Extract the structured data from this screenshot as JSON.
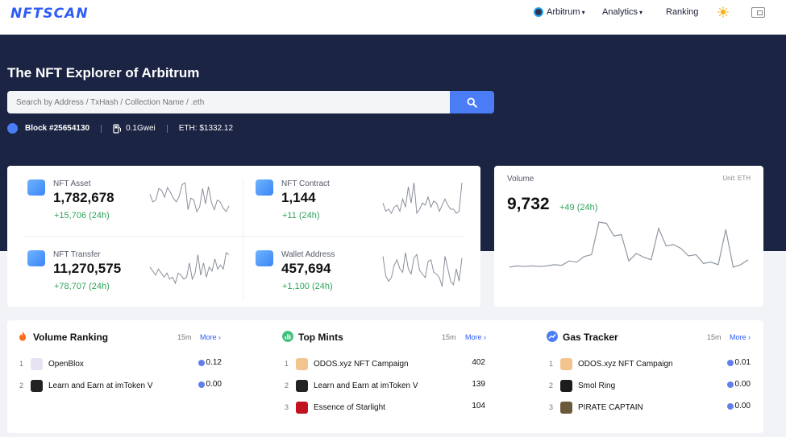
{
  "brand": {
    "logo": "NFTSCAN"
  },
  "nav": {
    "network": "Arbitrum",
    "analytics": "Analytics",
    "ranking": "Ranking"
  },
  "hero": {
    "title": "The NFT Explorer of Arbitrum",
    "search_placeholder": "Search by Address / TxHash / Collection Name / .eth",
    "block": "Block #25654130",
    "gas": "0.1Gwei",
    "eth_price": "ETH: $1332.12"
  },
  "metrics": [
    {
      "label": "NFT Asset",
      "value": "1,782,678",
      "delta": "+15,706 (24h)",
      "spark": [
        12,
        20,
        18,
        6,
        8,
        15,
        5,
        10,
        16,
        20,
        14,
        2,
        0,
        28,
        16,
        18,
        30,
        25,
        6,
        22,
        4,
        20,
        28,
        18,
        20,
        26,
        30,
        24
      ]
    },
    {
      "label": "NFT Contract",
      "value": "1,144",
      "delta": "+11 (24h)",
      "spark": [
        20,
        28,
        26,
        30,
        24,
        22,
        28,
        16,
        24,
        4,
        20,
        0,
        30,
        26,
        20,
        22,
        14,
        24,
        18,
        20,
        28,
        22,
        16,
        22,
        26,
        26,
        30,
        28,
        0
      ]
    },
    {
      "label": "NFT Transfer",
      "value": "11,270,575",
      "delta": "+78,707 (24h)",
      "spark": [
        18,
        22,
        26,
        20,
        24,
        28,
        24,
        30,
        28,
        34,
        24,
        26,
        30,
        28,
        14,
        30,
        24,
        6,
        26,
        14,
        28,
        18,
        22,
        10,
        20,
        16,
        20,
        4,
        6
      ]
    },
    {
      "label": "Wallet Address",
      "value": "457,694",
      "delta": "+1,100 (24h)",
      "spark": [
        6,
        28,
        34,
        30,
        16,
        10,
        20,
        24,
        2,
        20,
        26,
        8,
        4,
        22,
        26,
        30,
        12,
        10,
        24,
        26,
        30,
        40,
        6,
        20,
        34,
        38,
        20,
        34,
        8
      ]
    }
  ],
  "volume": {
    "label": "Volume",
    "unit": "Unit: ETH",
    "value": "9,732",
    "delta": "+49 (24h)",
    "series": [
      92,
      90,
      91,
      90,
      91,
      90,
      88,
      89,
      82,
      84,
      75,
      72,
      20,
      22,
      42,
      40,
      82,
      70,
      76,
      80,
      30,
      58,
      56,
      62,
      74,
      72,
      86,
      84,
      88,
      32,
      92,
      88,
      80
    ]
  },
  "panels": [
    {
      "title": "Volume Ranking",
      "interval": "15m",
      "more": "More",
      "rows": [
        {
          "rank": "1",
          "name": "OpenBlox",
          "value": "0.12",
          "color": "#e8e3f3"
        },
        {
          "rank": "2",
          "name": "Learn and Earn at imToken V",
          "value": "0.00",
          "color": "#222222"
        }
      ]
    },
    {
      "title": "Top Mints",
      "interval": "15m",
      "more": "More",
      "rows": [
        {
          "rank": "1",
          "name": "ODOS.xyz NFT Campaign",
          "value": "402",
          "color": "#f3c58e"
        },
        {
          "rank": "2",
          "name": "Learn and Earn at imToken V",
          "value": "139",
          "color": "#222222"
        },
        {
          "rank": "3",
          "name": "Essence of Starlight",
          "value": "104",
          "color": "#c1121f"
        }
      ]
    },
    {
      "title": "Gas Tracker",
      "interval": "15m",
      "more": "More",
      "rows": [
        {
          "rank": "1",
          "name": "ODOS.xyz NFT Campaign",
          "value": "0.01",
          "color": "#f3c58e"
        },
        {
          "rank": "2",
          "name": "Smol Ring",
          "value": "0.00",
          "color": "#1c1c1c"
        },
        {
          "rank": "3",
          "name": "PIRATE CAPTAIN",
          "value": "0.00",
          "color": "#6b5a3a"
        }
      ]
    }
  ],
  "colors": {
    "accent": "#2d5cf6",
    "hero_bg": "#1c2443",
    "positive": "#2fa35a",
    "eth": "#627eea"
  }
}
